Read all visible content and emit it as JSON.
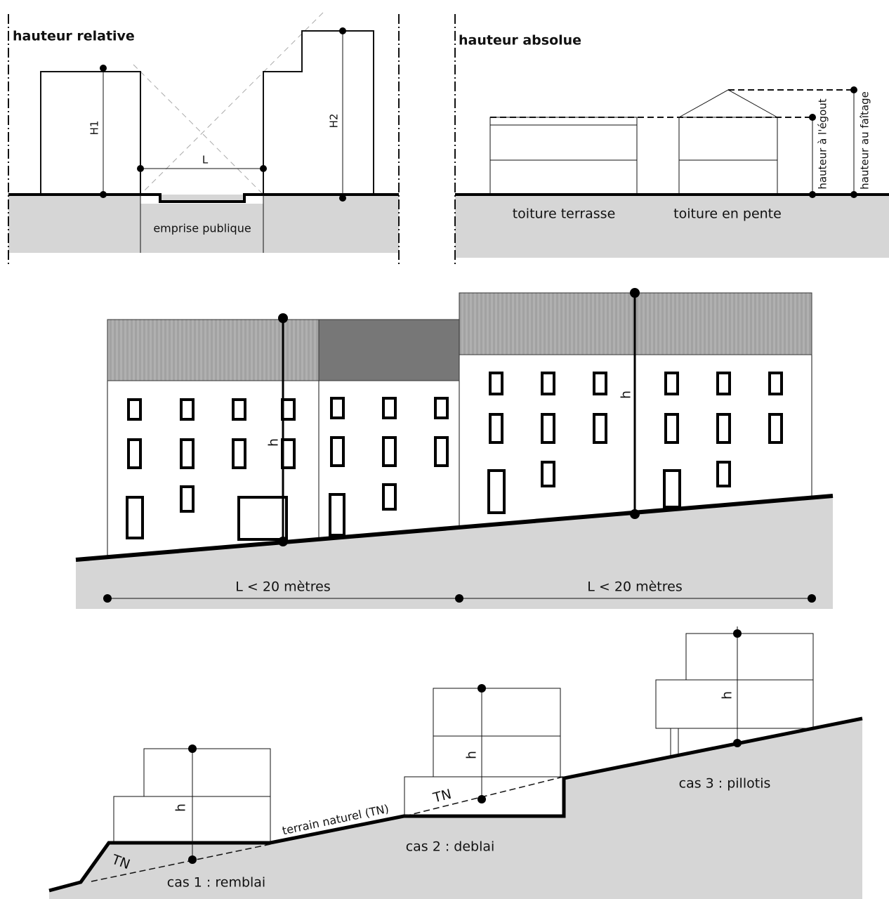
{
  "relative": {
    "title": "hauteur relative",
    "h1": "H1",
    "h2": "H2",
    "l": "L",
    "ground": "emprise publique"
  },
  "absolute": {
    "title": "hauteur absolue",
    "flat": "toiture terrasse",
    "sloped": "toiture en pente",
    "eave": "hauteur à l'égout",
    "ridge": "hauteur au faîtage"
  },
  "street": {
    "h_left": "h",
    "h_right": "h",
    "length_left": "L < 20 mètres",
    "length_right": "L < 20 mètres"
  },
  "slope": {
    "terrain": "terrain naturel (TN)",
    "case1": {
      "tn": "TN",
      "h": "h",
      "label": "cas 1 : remblai"
    },
    "case2": {
      "tn": "TN",
      "h": "h",
      "label": "cas 2 : deblai"
    },
    "case3": {
      "h": "h",
      "label": "cas 3 : pillotis"
    }
  }
}
